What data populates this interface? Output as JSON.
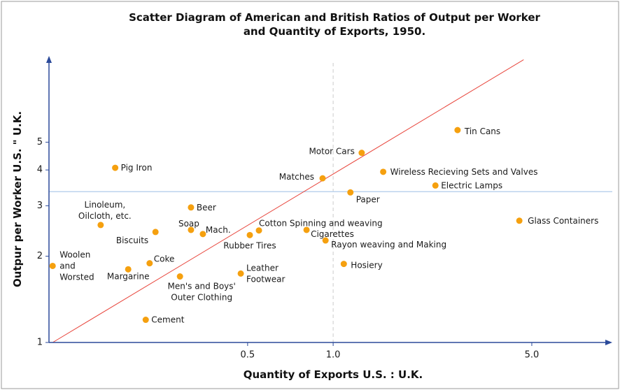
{
  "chart_data": {
    "type": "scatter",
    "title": "Scatter Diagram of American and British Ratios of Output per Worker\nand Quantity of Exports, 1950.",
    "x_label": "Quantity of Exports U.S. : U.K.",
    "y_label": "Outpur per Worker U.S. \" U.K.",
    "log_x": true,
    "log_y": true,
    "xlim": [
      0.1,
      9.6
    ],
    "ylim": [
      1,
      10
    ],
    "xticks": [
      0.5,
      {
        "value": 1,
        "label": "1.0"
      },
      {
        "value": 5,
        "label": "5.0"
      }
    ],
    "yticks": [
      1,
      2,
      3,
      4,
      5
    ],
    "color": "#f5a00f",
    "reference_x": 1,
    "reference_y": 3.36,
    "trend_line": {
      "color": "#e8453c",
      "x": [
        0.103,
        4.68
      ],
      "y": [
        1,
        9.7
      ]
    },
    "labels": [
      "Pig Iron",
      "Linoleum,\nOilcloth, etc.",
      "Woolen\nand\nWorsted",
      "Margarine",
      "Coke",
      "Biscuits",
      "Beer",
      "Soap",
      "Mach.",
      "Men's and Boys'\nOuter Clothing",
      "Cement",
      "Leather\nFootwear",
      "Rubber Tires",
      "Cotton Spinning and weaving",
      "Matches",
      "Motor Cars",
      "Cigarettes",
      "Rayon weaving and Making",
      "Paper",
      "Hosiery",
      "Wireless Recieving Sets and Valves",
      "Electric Lamps",
      "Tin Cans",
      "Glass Containers"
    ],
    "x": [
      0.171,
      0.152,
      0.103,
      0.19,
      0.226,
      0.237,
      0.316,
      0.316,
      0.348,
      0.289,
      0.219,
      0.473,
      0.509,
      0.548,
      0.918,
      1.26,
      0.806,
      0.94,
      1.15,
      1.09,
      1.5,
      2.29,
      2.74,
      4.52
    ],
    "y": [
      4.07,
      2.57,
      1.85,
      1.8,
      1.89,
      2.43,
      2.96,
      2.47,
      2.39,
      1.7,
      1.2,
      1.74,
      2.37,
      2.46,
      3.74,
      4.59,
      2.47,
      2.27,
      3.34,
      1.88,
      3.94,
      3.53,
      5.51,
      2.66
    ]
  }
}
